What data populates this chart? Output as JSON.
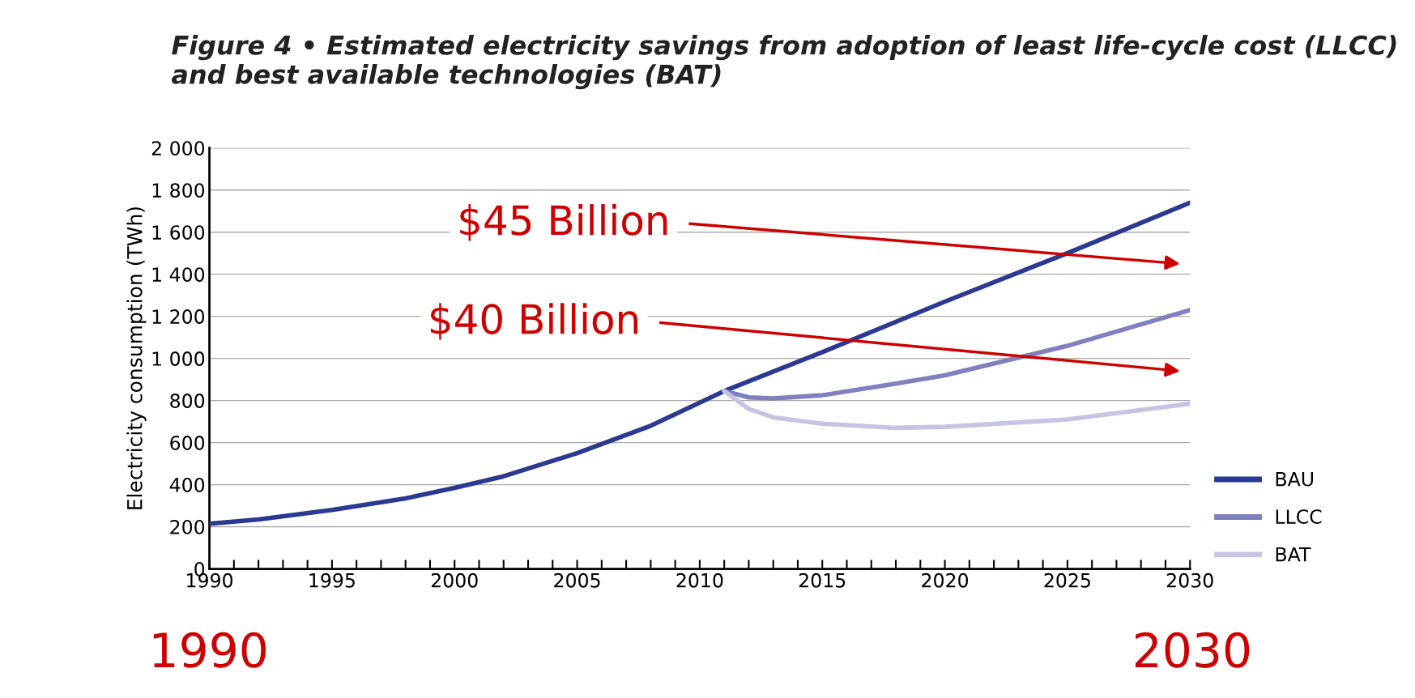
{
  "chart_data": {
    "type": "line",
    "title": "Figure 4 • Estimated electricity savings from adoption of least life-cycle cost (LLCC) and best available technologies (BAT)",
    "ylabel": "Electricity consumption (TWh)",
    "series": [
      {
        "name": "BAU",
        "color": "#2b3990",
        "x": [
          1990,
          1992,
          1995,
          1998,
          2000,
          2002,
          2005,
          2008,
          2010,
          2011,
          2015,
          2020,
          2025,
          2030
        ],
        "values": [
          215,
          235,
          280,
          335,
          385,
          440,
          550,
          680,
          790,
          845,
          1030,
          1270,
          1500,
          1740
        ]
      },
      {
        "name": "LLCC",
        "color": "#8080bf",
        "x": [
          2011,
          2012,
          2013,
          2015,
          2018,
          2020,
          2025,
          2030
        ],
        "values": [
          845,
          815,
          810,
          825,
          880,
          920,
          1060,
          1230
        ]
      },
      {
        "name": "BAT",
        "color": "#c5c5e3",
        "x": [
          2011,
          2012,
          2013,
          2015,
          2018,
          2020,
          2025,
          2030
        ],
        "values": [
          845,
          760,
          720,
          690,
          670,
          675,
          710,
          785
        ]
      }
    ],
    "xlim": [
      1990,
      2030
    ],
    "xticks": [
      1990,
      {
        "value": 1991,
        "label": null
      },
      {
        "value": 1992,
        "label": null
      },
      {
        "value": 1993,
        "label": null
      },
      {
        "value": 1994,
        "label": null
      },
      1995,
      {
        "value": 1996,
        "label": null
      },
      {
        "value": 1997,
        "label": null
      },
      {
        "value": 1998,
        "label": null
      },
      {
        "value": 1999,
        "label": null
      },
      2000,
      {
        "value": 2001,
        "label": null
      },
      {
        "value": 2002,
        "label": null
      },
      {
        "value": 2003,
        "label": null
      },
      {
        "value": 2004,
        "label": null
      },
      2005,
      {
        "value": 2006,
        "label": null
      },
      {
        "value": 2007,
        "label": null
      },
      {
        "value": 2008,
        "label": null
      },
      {
        "value": 2009,
        "label": null
      },
      2010,
      {
        "value": 2011,
        "label": null
      },
      {
        "value": 2012,
        "label": null
      },
      {
        "value": 2013,
        "label": null
      },
      {
        "value": 2014,
        "label": null
      },
      2015,
      {
        "value": 2016,
        "label": null
      },
      {
        "value": 2017,
        "label": null
      },
      {
        "value": 2018,
        "label": null
      },
      {
        "value": 2019,
        "label": null
      },
      2020,
      {
        "value": 2021,
        "label": null
      },
      {
        "value": 2022,
        "label": null
      },
      {
        "value": 2023,
        "label": null
      },
      {
        "value": 2024,
        "label": null
      },
      2025,
      {
        "value": 2026,
        "label": null
      },
      {
        "value": 2027,
        "label": null
      },
      {
        "value": 2028,
        "label": null
      },
      {
        "value": 2029,
        "label": null
      },
      2030
    ],
    "ylim": [
      0,
      2000
    ],
    "yticks": [
      0,
      200,
      400,
      600,
      800,
      {
        "value": 1000,
        "label": "1 000"
      },
      {
        "value": 1200,
        "label": "1 200"
      },
      {
        "value": 1400,
        "label": "1 400"
      },
      {
        "value": 1600,
        "label": "1 600"
      },
      {
        "value": 1800,
        "label": "1 800"
      },
      {
        "value": 2000,
        "label": "2 000"
      }
    ],
    "grid": "y",
    "legend": "right",
    "marker": "none",
    "line_style": "solid",
    "annotations": [
      "$45 Billion",
      "$40 Billion",
      "1990",
      "2030"
    ]
  }
}
